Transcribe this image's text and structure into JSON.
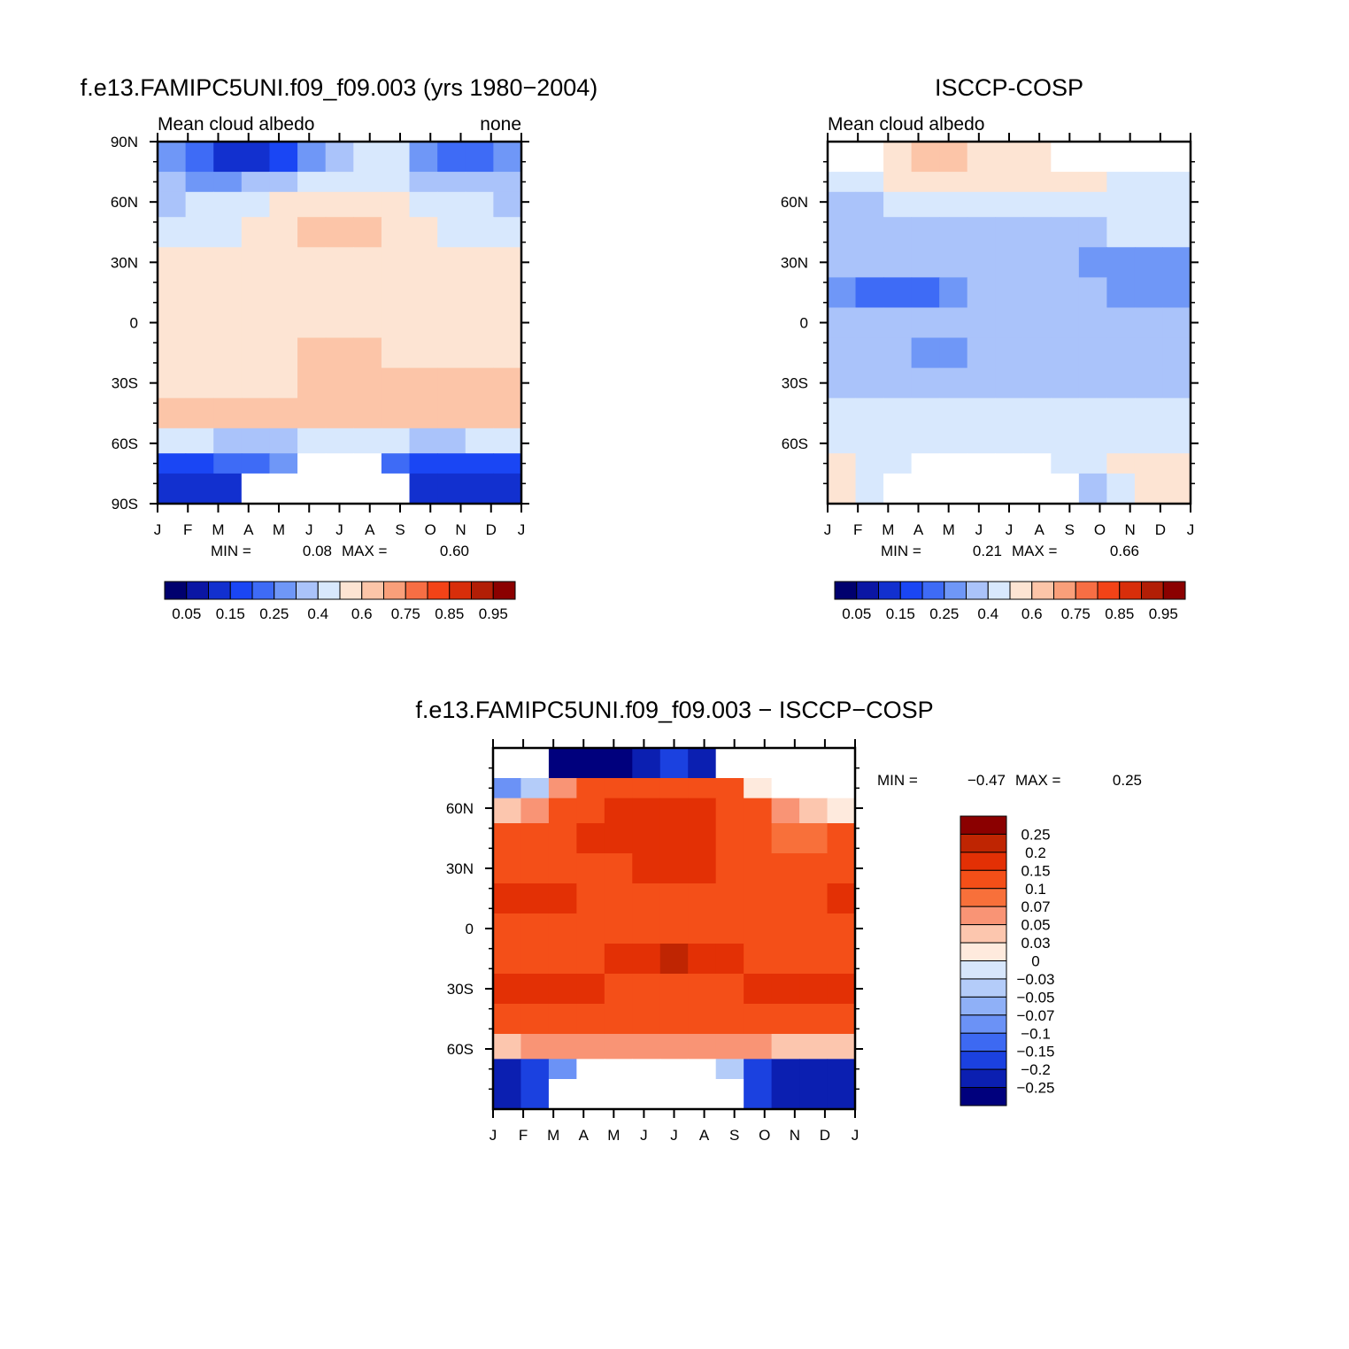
{
  "chart_data": [
    {
      "type": "heatmap",
      "title": "f.e13.FAMIPC5UNI.f09_f09.003 (yrs 1980-2004)",
      "left_label": "Mean cloud albedo",
      "right_label": "none",
      "x_ticks": [
        "J",
        "F",
        "M",
        "A",
        "M",
        "J",
        "J",
        "A",
        "S",
        "O",
        "N",
        "D",
        "J"
      ],
      "y_ticks": [
        "90N",
        "60N",
        "30N",
        "0",
        "30S",
        "60S",
        "90S"
      ],
      "ylim": [
        -90,
        90
      ],
      "min_label": "MIN =",
      "min_value": "0.08",
      "max_label": "MAX =",
      "max_value": "0.60",
      "colorbar_labels": [
        "0.05",
        "0.15",
        "0.25",
        "0.4",
        "0.6",
        "0.75",
        "0.85",
        "0.95"
      ],
      "latitudes": [
        80,
        70,
        60,
        45,
        30,
        15,
        0,
        -15,
        -30,
        -45,
        -60,
        -70,
        -80
      ],
      "values": [
        [
          0.3,
          0.25,
          0.15,
          0.15,
          0.2,
          0.3,
          0.35,
          0.38,
          0.38,
          0.3,
          0.25,
          0.25,
          0.3
        ],
        [
          0.32,
          0.3,
          0.3,
          0.32,
          0.35,
          0.38,
          0.4,
          0.4,
          0.38,
          0.35,
          0.32,
          0.32,
          0.32
        ],
        [
          0.35,
          0.36,
          0.38,
          0.4,
          0.42,
          0.48,
          0.5,
          0.48,
          0.42,
          0.4,
          0.38,
          0.36,
          0.35
        ],
        [
          0.4,
          0.4,
          0.4,
          0.45,
          0.5,
          0.52,
          0.52,
          0.52,
          0.5,
          0.45,
          0.4,
          0.4,
          0.4
        ],
        [
          0.42,
          0.42,
          0.42,
          0.42,
          0.42,
          0.42,
          0.42,
          0.42,
          0.42,
          0.42,
          0.42,
          0.42,
          0.42
        ],
        [
          0.42,
          0.42,
          0.42,
          0.42,
          0.42,
          0.42,
          0.42,
          0.42,
          0.42,
          0.42,
          0.42,
          0.42,
          0.42
        ],
        [
          0.42,
          0.42,
          0.42,
          0.42,
          0.42,
          0.45,
          0.48,
          0.48,
          0.45,
          0.42,
          0.42,
          0.42,
          0.42
        ],
        [
          0.42,
          0.42,
          0.42,
          0.42,
          0.45,
          0.52,
          0.52,
          0.52,
          0.5,
          0.45,
          0.42,
          0.42,
          0.42
        ],
        [
          0.48,
          0.48,
          0.48,
          0.48,
          0.5,
          0.52,
          0.52,
          0.52,
          0.52,
          0.52,
          0.52,
          0.52,
          0.52
        ],
        [
          0.52,
          0.52,
          0.52,
          0.52,
          0.52,
          0.52,
          0.52,
          0.52,
          0.52,
          0.52,
          0.52,
          0.52,
          0.52
        ],
        [
          0.38,
          0.36,
          0.35,
          0.35,
          0.35,
          0.36,
          0.38,
          0.38,
          0.36,
          0.35,
          0.35,
          0.36,
          0.38
        ],
        [
          0.2,
          0.2,
          0.22,
          0.25,
          0.28,
          null,
          null,
          null,
          0.25,
          0.2,
          0.2,
          0.2,
          0.2
        ],
        [
          0.12,
          0.12,
          0.12,
          null,
          null,
          null,
          null,
          null,
          null,
          0.12,
          0.12,
          0.12,
          0.12
        ]
      ]
    },
    {
      "type": "heatmap",
      "title": "ISCCP-COSP",
      "left_label": "Mean cloud albedo",
      "right_label": "",
      "x_ticks": [
        "J",
        "F",
        "M",
        "A",
        "M",
        "J",
        "J",
        "A",
        "S",
        "O",
        "N",
        "D",
        "J"
      ],
      "y_ticks": [
        "60N",
        "30N",
        "0",
        "30S",
        "60S"
      ],
      "ylim": [
        -90,
        90
      ],
      "min_label": "MIN =",
      "min_value": "0.21",
      "max_label": "MAX =",
      "max_value": "0.66",
      "colorbar_labels": [
        "0.05",
        "0.15",
        "0.25",
        "0.4",
        "0.6",
        "0.75",
        "0.85",
        "0.95"
      ],
      "latitudes": [
        80,
        70,
        60,
        45,
        30,
        15,
        0,
        -15,
        -30,
        -45,
        -60,
        -70,
        -80
      ],
      "values": [
        [
          null,
          null,
          0.45,
          0.52,
          0.52,
          0.48,
          0.45,
          0.45,
          null,
          null,
          null,
          null,
          null
        ],
        [
          0.4,
          0.4,
          0.42,
          0.45,
          0.45,
          0.42,
          0.42,
          0.42,
          0.42,
          0.42,
          0.4,
          0.4,
          0.4
        ],
        [
          0.35,
          0.35,
          0.38,
          0.38,
          0.38,
          0.38,
          0.4,
          0.4,
          0.38,
          0.38,
          0.38,
          0.38,
          0.36
        ],
        [
          0.35,
          0.35,
          0.35,
          0.35,
          0.35,
          0.35,
          0.35,
          0.35,
          0.35,
          0.35,
          0.36,
          0.38,
          0.38
        ],
        [
          0.35,
          0.35,
          0.35,
          0.35,
          0.35,
          0.35,
          0.35,
          0.35,
          0.35,
          0.3,
          0.3,
          0.3,
          0.3
        ],
        [
          0.28,
          0.25,
          0.22,
          0.25,
          0.3,
          0.35,
          0.35,
          0.35,
          0.35,
          0.35,
          0.3,
          0.3,
          0.3
        ],
        [
          0.35,
          0.35,
          0.35,
          0.35,
          0.35,
          0.35,
          0.35,
          0.35,
          0.35,
          0.35,
          0.35,
          0.35,
          0.35
        ],
        [
          0.35,
          0.35,
          0.35,
          0.3,
          0.3,
          0.35,
          0.35,
          0.35,
          0.35,
          0.35,
          0.35,
          0.35,
          0.35
        ],
        [
          0.35,
          0.35,
          0.35,
          0.35,
          0.35,
          0.35,
          0.35,
          0.35,
          0.35,
          0.35,
          0.35,
          0.35,
          0.35
        ],
        [
          0.4,
          0.4,
          0.38,
          0.38,
          0.38,
          0.38,
          0.38,
          0.38,
          0.38,
          0.38,
          0.4,
          0.4,
          0.4
        ],
        [
          0.4,
          0.4,
          0.4,
          0.4,
          0.4,
          0.4,
          0.4,
          0.4,
          0.4,
          0.4,
          0.4,
          0.4,
          0.4
        ],
        [
          0.45,
          0.4,
          0.38,
          null,
          null,
          null,
          null,
          null,
          0.38,
          0.4,
          0.45,
          0.48,
          0.45
        ],
        [
          0.42,
          0.38,
          null,
          null,
          null,
          null,
          null,
          null,
          null,
          0.35,
          0.38,
          0.42,
          0.42
        ]
      ]
    },
    {
      "type": "heatmap",
      "title": "f.e13.FAMIPC5UNI.f09_f09.003 - ISCCP-COSP",
      "x_ticks": [
        "J",
        "F",
        "M",
        "A",
        "M",
        "J",
        "J",
        "A",
        "S",
        "O",
        "N",
        "D",
        "J"
      ],
      "y_ticks": [
        "60N",
        "30N",
        "0",
        "30S",
        "60S"
      ],
      "ylim": [
        -90,
        90
      ],
      "min_label": "MIN =",
      "min_value": "-0.47",
      "max_label": "MAX =",
      "max_value": "0.25",
      "colorbar_labels": [
        "0.25",
        "0.2",
        "0.15",
        "0.1",
        "0.07",
        "0.05",
        "0.03",
        "0",
        "-0.03",
        "-0.05",
        "-0.07",
        "-0.1",
        "-0.15",
        "-0.2",
        "-0.25"
      ],
      "latitudes": [
        80,
        70,
        60,
        45,
        30,
        15,
        0,
        -15,
        -30,
        -45,
        -60,
        -70,
        -80
      ],
      "values": [
        [
          null,
          null,
          -0.3,
          -0.3,
          -0.3,
          -0.25,
          -0.2,
          -0.22,
          null,
          null,
          null,
          null,
          null
        ],
        [
          -0.1,
          -0.05,
          0.05,
          0.1,
          0.12,
          0.14,
          0.14,
          0.14,
          0.1,
          0.02,
          null,
          null,
          null
        ],
        [
          0.03,
          0.05,
          0.1,
          0.12,
          0.15,
          0.15,
          0.15,
          0.15,
          0.12,
          0.1,
          0.05,
          0.03,
          0.02
        ],
        [
          0.1,
          0.12,
          0.12,
          0.15,
          0.15,
          0.15,
          0.17,
          0.15,
          0.12,
          0.1,
          0.07,
          0.07,
          0.1
        ],
        [
          0.12,
          0.12,
          0.12,
          0.12,
          0.12,
          0.15,
          0.17,
          0.15,
          0.12,
          0.12,
          0.12,
          0.12,
          0.12
        ],
        [
          0.15,
          0.17,
          0.15,
          0.12,
          0.12,
          0.12,
          0.12,
          0.12,
          0.12,
          0.12,
          0.12,
          0.12,
          0.15
        ],
        [
          0.12,
          0.12,
          0.12,
          0.12,
          0.12,
          0.12,
          0.12,
          0.12,
          0.12,
          0.12,
          0.12,
          0.12,
          0.12
        ],
        [
          0.12,
          0.12,
          0.12,
          0.12,
          0.15,
          0.18,
          0.2,
          0.18,
          0.15,
          0.12,
          0.12,
          0.12,
          0.12
        ],
        [
          0.15,
          0.15,
          0.15,
          0.15,
          0.12,
          0.12,
          0.12,
          0.12,
          0.12,
          0.15,
          0.15,
          0.15,
          0.15
        ],
        [
          0.12,
          0.12,
          0.12,
          0.12,
          0.12,
          0.12,
          0.12,
          0.12,
          0.12,
          0.12,
          0.12,
          0.12,
          0.12
        ],
        [
          0.03,
          0.05,
          0.05,
          0.05,
          0.05,
          0.05,
          0.05,
          0.05,
          0.05,
          0.05,
          0.03,
          0.03,
          0.03
        ],
        [
          -0.25,
          -0.2,
          -0.1,
          null,
          null,
          null,
          null,
          null,
          -0.05,
          -0.2,
          -0.25,
          -0.25,
          -0.25
        ],
        [
          -0.25,
          -0.2,
          null,
          null,
          null,
          null,
          null,
          null,
          null,
          -0.2,
          -0.25,
          -0.25,
          -0.25
        ]
      ]
    }
  ],
  "colors": {
    "scale_blue_red": [
      "#00006e",
      "#0b16a4",
      "#1230cf",
      "#1a46f4",
      "#3e6bf6",
      "#6f97f7",
      "#aac3fa",
      "#d8e8fd",
      "#fde4d3",
      "#fcc5a8",
      "#f99f7a",
      "#f76e44",
      "#f34317",
      "#d82e0a",
      "#b21e06",
      "#8b0000"
    ],
    "diff_scale": [
      "#8b0000",
      "#bf2502",
      "#e33005",
      "#f44f18",
      "#f8703a",
      "#f99475",
      "#fcc6ae",
      "#feeadd",
      "#d7e6fb",
      "#b4ccf9",
      "#8fb0f7",
      "#6b92f6",
      "#3d69f2",
      "#1b41e0",
      "#0b1fb1",
      "#00007d"
    ]
  }
}
